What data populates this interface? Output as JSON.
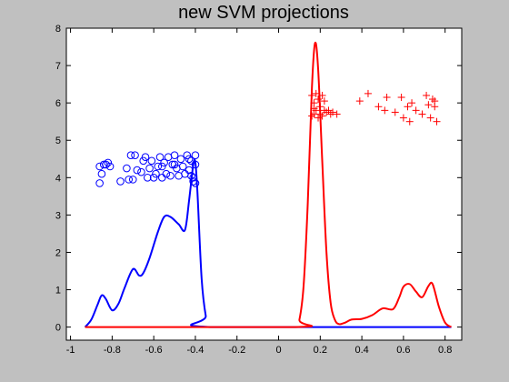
{
  "chart_data": {
    "type": "line",
    "title": "new SVM projections",
    "xlabel": "",
    "ylabel": "",
    "xlim": [
      -1.02,
      0.88
    ],
    "ylim": [
      -0.35,
      8
    ],
    "grid": false,
    "x_ticks": [
      -1,
      -0.8,
      -0.6,
      -0.4,
      -0.2,
      0,
      0.2,
      0.4,
      0.6,
      0.8
    ],
    "x_tick_labels": [
      "-1",
      "-0.8",
      "-0.6",
      "-0.4",
      "-0.2",
      "0",
      "0.2",
      "0.4",
      "0.6",
      "0.8"
    ],
    "y_ticks": [
      0,
      1,
      2,
      3,
      4,
      5,
      6,
      7,
      8
    ],
    "y_tick_labels": [
      "0",
      "1",
      "2",
      "3",
      "4",
      "5",
      "6",
      "7",
      "8"
    ],
    "colors": {
      "blue": "#0000ff",
      "red": "#ff0000",
      "axes_bg": "#ffffff",
      "figure_bg": "#c0c0c0"
    },
    "lines": [
      {
        "color": "#0000ff",
        "points": [
          [
            -0.93,
            0
          ],
          [
            -0.9,
            0.2
          ],
          [
            -0.87,
            0.6
          ],
          [
            -0.85,
            0.85
          ],
          [
            -0.83,
            0.75
          ],
          [
            -0.8,
            0.45
          ],
          [
            -0.77,
            0.62
          ],
          [
            -0.74,
            1.05
          ],
          [
            -0.7,
            1.55
          ],
          [
            -0.67,
            1.38
          ],
          [
            -0.65,
            1.45
          ],
          [
            -0.62,
            1.85
          ],
          [
            -0.58,
            2.55
          ],
          [
            -0.55,
            2.95
          ],
          [
            -0.52,
            2.95
          ],
          [
            -0.48,
            2.75
          ],
          [
            -0.45,
            2.6
          ],
          [
            -0.43,
            3.4
          ],
          [
            -0.41,
            4.35
          ],
          [
            -0.4,
            4.4
          ],
          [
            -0.39,
            3.6
          ],
          [
            -0.37,
            1.3
          ],
          [
            -0.35,
            0.3
          ],
          [
            -0.33,
            0
          ],
          [
            0.83,
            0
          ]
        ]
      },
      {
        "color": "#ff0000",
        "points": [
          [
            -0.93,
            0
          ],
          [
            0.08,
            0
          ],
          [
            0.1,
            0.2
          ],
          [
            0.12,
            1.1
          ],
          [
            0.14,
            3.3
          ],
          [
            0.16,
            6.4
          ],
          [
            0.175,
            7.6
          ],
          [
            0.19,
            6.9
          ],
          [
            0.21,
            4.4
          ],
          [
            0.23,
            2.0
          ],
          [
            0.25,
            0.65
          ],
          [
            0.27,
            0.2
          ],
          [
            0.29,
            0.08
          ],
          [
            0.32,
            0.12
          ],
          [
            0.35,
            0.2
          ],
          [
            0.4,
            0.22
          ],
          [
            0.45,
            0.32
          ],
          [
            0.5,
            0.5
          ],
          [
            0.55,
            0.48
          ],
          [
            0.58,
            0.8
          ],
          [
            0.6,
            1.08
          ],
          [
            0.63,
            1.15
          ],
          [
            0.66,
            0.95
          ],
          [
            0.69,
            0.8
          ],
          [
            0.72,
            1.1
          ],
          [
            0.74,
            1.15
          ],
          [
            0.77,
            0.55
          ],
          [
            0.8,
            0.12
          ],
          [
            0.83,
            0
          ]
        ]
      }
    ],
    "scatter": [
      {
        "marker": "circle",
        "color": "#0000ff",
        "points": [
          [
            -0.86,
            4.3
          ],
          [
            -0.84,
            4.35
          ],
          [
            -0.82,
            4.4
          ],
          [
            -0.85,
            4.1
          ],
          [
            -0.83,
            4.35
          ],
          [
            -0.81,
            4.3
          ],
          [
            -0.86,
            3.85
          ],
          [
            -0.76,
            3.9
          ],
          [
            -0.72,
            3.95
          ],
          [
            -0.73,
            4.25
          ],
          [
            -0.71,
            4.6
          ],
          [
            -0.69,
            4.6
          ],
          [
            -0.7,
            3.95
          ],
          [
            -0.68,
            4.2
          ],
          [
            -0.66,
            4.15
          ],
          [
            -0.65,
            4.45
          ],
          [
            -0.63,
            4.0
          ],
          [
            -0.62,
            4.25
          ],
          [
            -0.61,
            4.45
          ],
          [
            -0.6,
            4.0
          ],
          [
            -0.58,
            4.3
          ],
          [
            -0.57,
            4.55
          ],
          [
            -0.56,
            4.0
          ],
          [
            -0.55,
            4.4
          ],
          [
            -0.54,
            4.1
          ],
          [
            -0.53,
            4.55
          ],
          [
            -0.52,
            4.05
          ],
          [
            -0.51,
            4.35
          ],
          [
            -0.5,
            4.6
          ],
          [
            -0.49,
            4.25
          ],
          [
            -0.48,
            4.05
          ],
          [
            -0.47,
            4.5
          ],
          [
            -0.46,
            4.3
          ],
          [
            -0.45,
            4.1
          ],
          [
            -0.44,
            4.6
          ],
          [
            -0.43,
            4.2
          ],
          [
            -0.42,
            4.45
          ],
          [
            -0.41,
            3.9
          ],
          [
            -0.4,
            4.35
          ],
          [
            -0.4,
            4.6
          ],
          [
            -0.41,
            4.0
          ],
          [
            -0.4,
            3.85
          ],
          [
            -0.42,
            4.05
          ],
          [
            -0.43,
            4.5
          ],
          [
            -0.5,
            4.35
          ],
          [
            -0.56,
            4.3
          ],
          [
            -0.59,
            4.1
          ],
          [
            -0.64,
            4.55
          ]
        ]
      },
      {
        "marker": "plus",
        "color": "#ff0000",
        "points": [
          [
            0.16,
            6.2
          ],
          [
            0.17,
            6.0
          ],
          [
            0.18,
            5.8
          ],
          [
            0.19,
            6.1
          ],
          [
            0.2,
            5.9
          ],
          [
            0.17,
            5.7
          ],
          [
            0.16,
            5.65
          ],
          [
            0.18,
            6.25
          ],
          [
            0.21,
            6.2
          ],
          [
            0.2,
            5.7
          ],
          [
            0.22,
            5.8
          ],
          [
            0.23,
            5.75
          ],
          [
            0.25,
            5.7
          ],
          [
            0.22,
            6.05
          ],
          [
            0.19,
            5.6
          ],
          [
            0.17,
            5.85
          ],
          [
            0.21,
            5.65
          ],
          [
            0.24,
            5.8
          ],
          [
            0.26,
            5.75
          ],
          [
            0.28,
            5.7
          ],
          [
            0.39,
            6.05
          ],
          [
            0.43,
            6.25
          ],
          [
            0.48,
            5.9
          ],
          [
            0.52,
            6.15
          ],
          [
            0.51,
            5.8
          ],
          [
            0.56,
            5.75
          ],
          [
            0.59,
            6.15
          ],
          [
            0.6,
            5.6
          ],
          [
            0.62,
            5.9
          ],
          [
            0.63,
            5.5
          ],
          [
            0.64,
            6.0
          ],
          [
            0.66,
            5.8
          ],
          [
            0.69,
            5.7
          ],
          [
            0.71,
            6.2
          ],
          [
            0.72,
            5.95
          ],
          [
            0.73,
            5.6
          ],
          [
            0.74,
            6.1
          ],
          [
            0.75,
            5.9
          ],
          [
            0.76,
            5.5
          ],
          [
            0.75,
            6.05
          ]
        ]
      }
    ]
  }
}
